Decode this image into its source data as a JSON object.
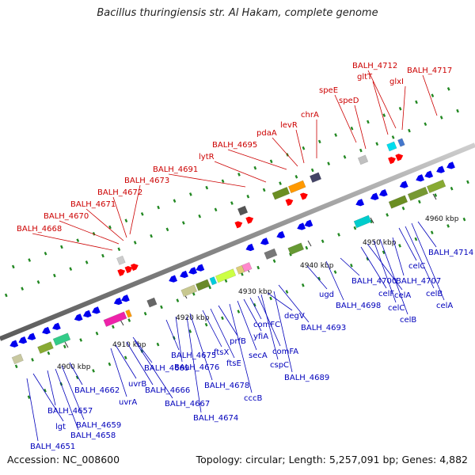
{
  "title": "Bacillus thuringiensis str. Al Hakam, complete genome",
  "footer": {
    "accession": "Accession: NC_008600",
    "summary": "Topology: circular; Length: 5,257,091 bp; Genes: 4,882"
  },
  "scale_labels": [
    "4900 kbp",
    "4910 kbp",
    "4920 kbp",
    "4930 kbp",
    "4940 kbp",
    "4950 kbp",
    "4960 kbp"
  ],
  "top_genes": [
    "BALH_4668",
    "BALH_4670",
    "BALH_4671",
    "BALH_4672",
    "BALH_4673",
    "BALH_4691",
    "lytR",
    "BALH_4695",
    "pdaA",
    "levR",
    "chrA",
    "speE",
    "speD",
    "gltT",
    "BALH_4712",
    "glxI",
    "BALH_4717"
  ],
  "bottom_genes": [
    "BALH_4651",
    "lgt",
    "BALH_4657",
    "BALH_4658",
    "BALH_4659",
    "BALH_4662",
    "uvrA",
    "uvrB",
    "BALH_4666",
    "BALH_4667",
    "BALH_4669",
    "BALH_4674",
    "BALH_4675",
    "BALH_4676",
    "BALH_4678",
    "ftsX",
    "ftsE",
    "prfB",
    "cccB",
    "secA",
    "yfiA",
    "comFC",
    "comFA",
    "cspC",
    "degV",
    "BALH_4689",
    "BALH_4693",
    "ugd",
    "BALH_4698",
    "BALH_4700",
    "celF",
    "celA",
    "celC",
    "celB",
    "BALH_4707",
    "celC",
    "celB",
    "celA",
    "BALH_4714"
  ],
  "colors": {
    "top_label": "#cc0000",
    "bottom_label": "#0000bb",
    "forward_gene": "#ff0000",
    "reverse_gene": "#0000ee",
    "backbone": "#888888",
    "tick": "#228822"
  }
}
